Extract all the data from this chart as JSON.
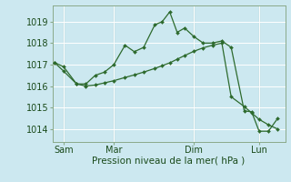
{
  "background_color": "#cce8f0",
  "grid_color": "#ffffff",
  "line_color": "#2d6a2d",
  "marker_color": "#2d6a2d",
  "xlabel": "Pression niveau de la mer( hPa )",
  "xlabel_color": "#1a4a1a",
  "tick_color": "#1a4a1a",
  "ylim": [
    1013.4,
    1019.75
  ],
  "yticks": [
    1014,
    1015,
    1016,
    1017,
    1018,
    1019
  ],
  "series1_x": [
    0.0,
    0.5,
    1.2,
    1.7,
    2.2,
    2.7,
    3.2,
    3.8,
    4.3,
    4.8,
    5.4,
    5.8,
    6.2,
    6.6,
    7.0,
    7.5,
    8.0,
    8.5,
    9.0,
    9.5,
    10.2,
    10.6,
    11.0,
    11.5,
    12.0
  ],
  "series1_y": [
    1017.1,
    1016.9,
    1016.1,
    1016.1,
    1016.5,
    1016.65,
    1017.0,
    1017.9,
    1017.6,
    1017.8,
    1018.85,
    1019.0,
    1019.45,
    1018.5,
    1018.7,
    1018.3,
    1018.0,
    1018.0,
    1018.1,
    1017.8,
    1014.85,
    1014.8,
    1013.9,
    1013.9,
    1014.5
  ],
  "series2_x": [
    0.0,
    0.5,
    1.2,
    1.7,
    2.2,
    2.7,
    3.2,
    3.8,
    4.3,
    4.8,
    5.4,
    5.8,
    6.2,
    6.6,
    7.0,
    7.5,
    8.0,
    8.5,
    9.0,
    9.5,
    10.2,
    10.6,
    11.0,
    11.5,
    12.0
  ],
  "series2_y": [
    1017.1,
    1016.7,
    1016.1,
    1016.0,
    1016.05,
    1016.15,
    1016.25,
    1016.4,
    1016.52,
    1016.65,
    1016.82,
    1016.95,
    1017.08,
    1017.25,
    1017.42,
    1017.62,
    1017.78,
    1017.9,
    1018.0,
    1015.5,
    1015.05,
    1014.75,
    1014.45,
    1014.2,
    1014.0
  ],
  "xtick_positions": [
    0.5,
    3.2,
    7.5,
    11.0
  ],
  "xtick_labels": [
    "Sam",
    "Mar",
    "Dim",
    "Lun"
  ],
  "vline_positions": [
    0.5,
    3.2,
    7.5,
    11.0
  ],
  "xlim": [
    -0.1,
    12.4
  ]
}
